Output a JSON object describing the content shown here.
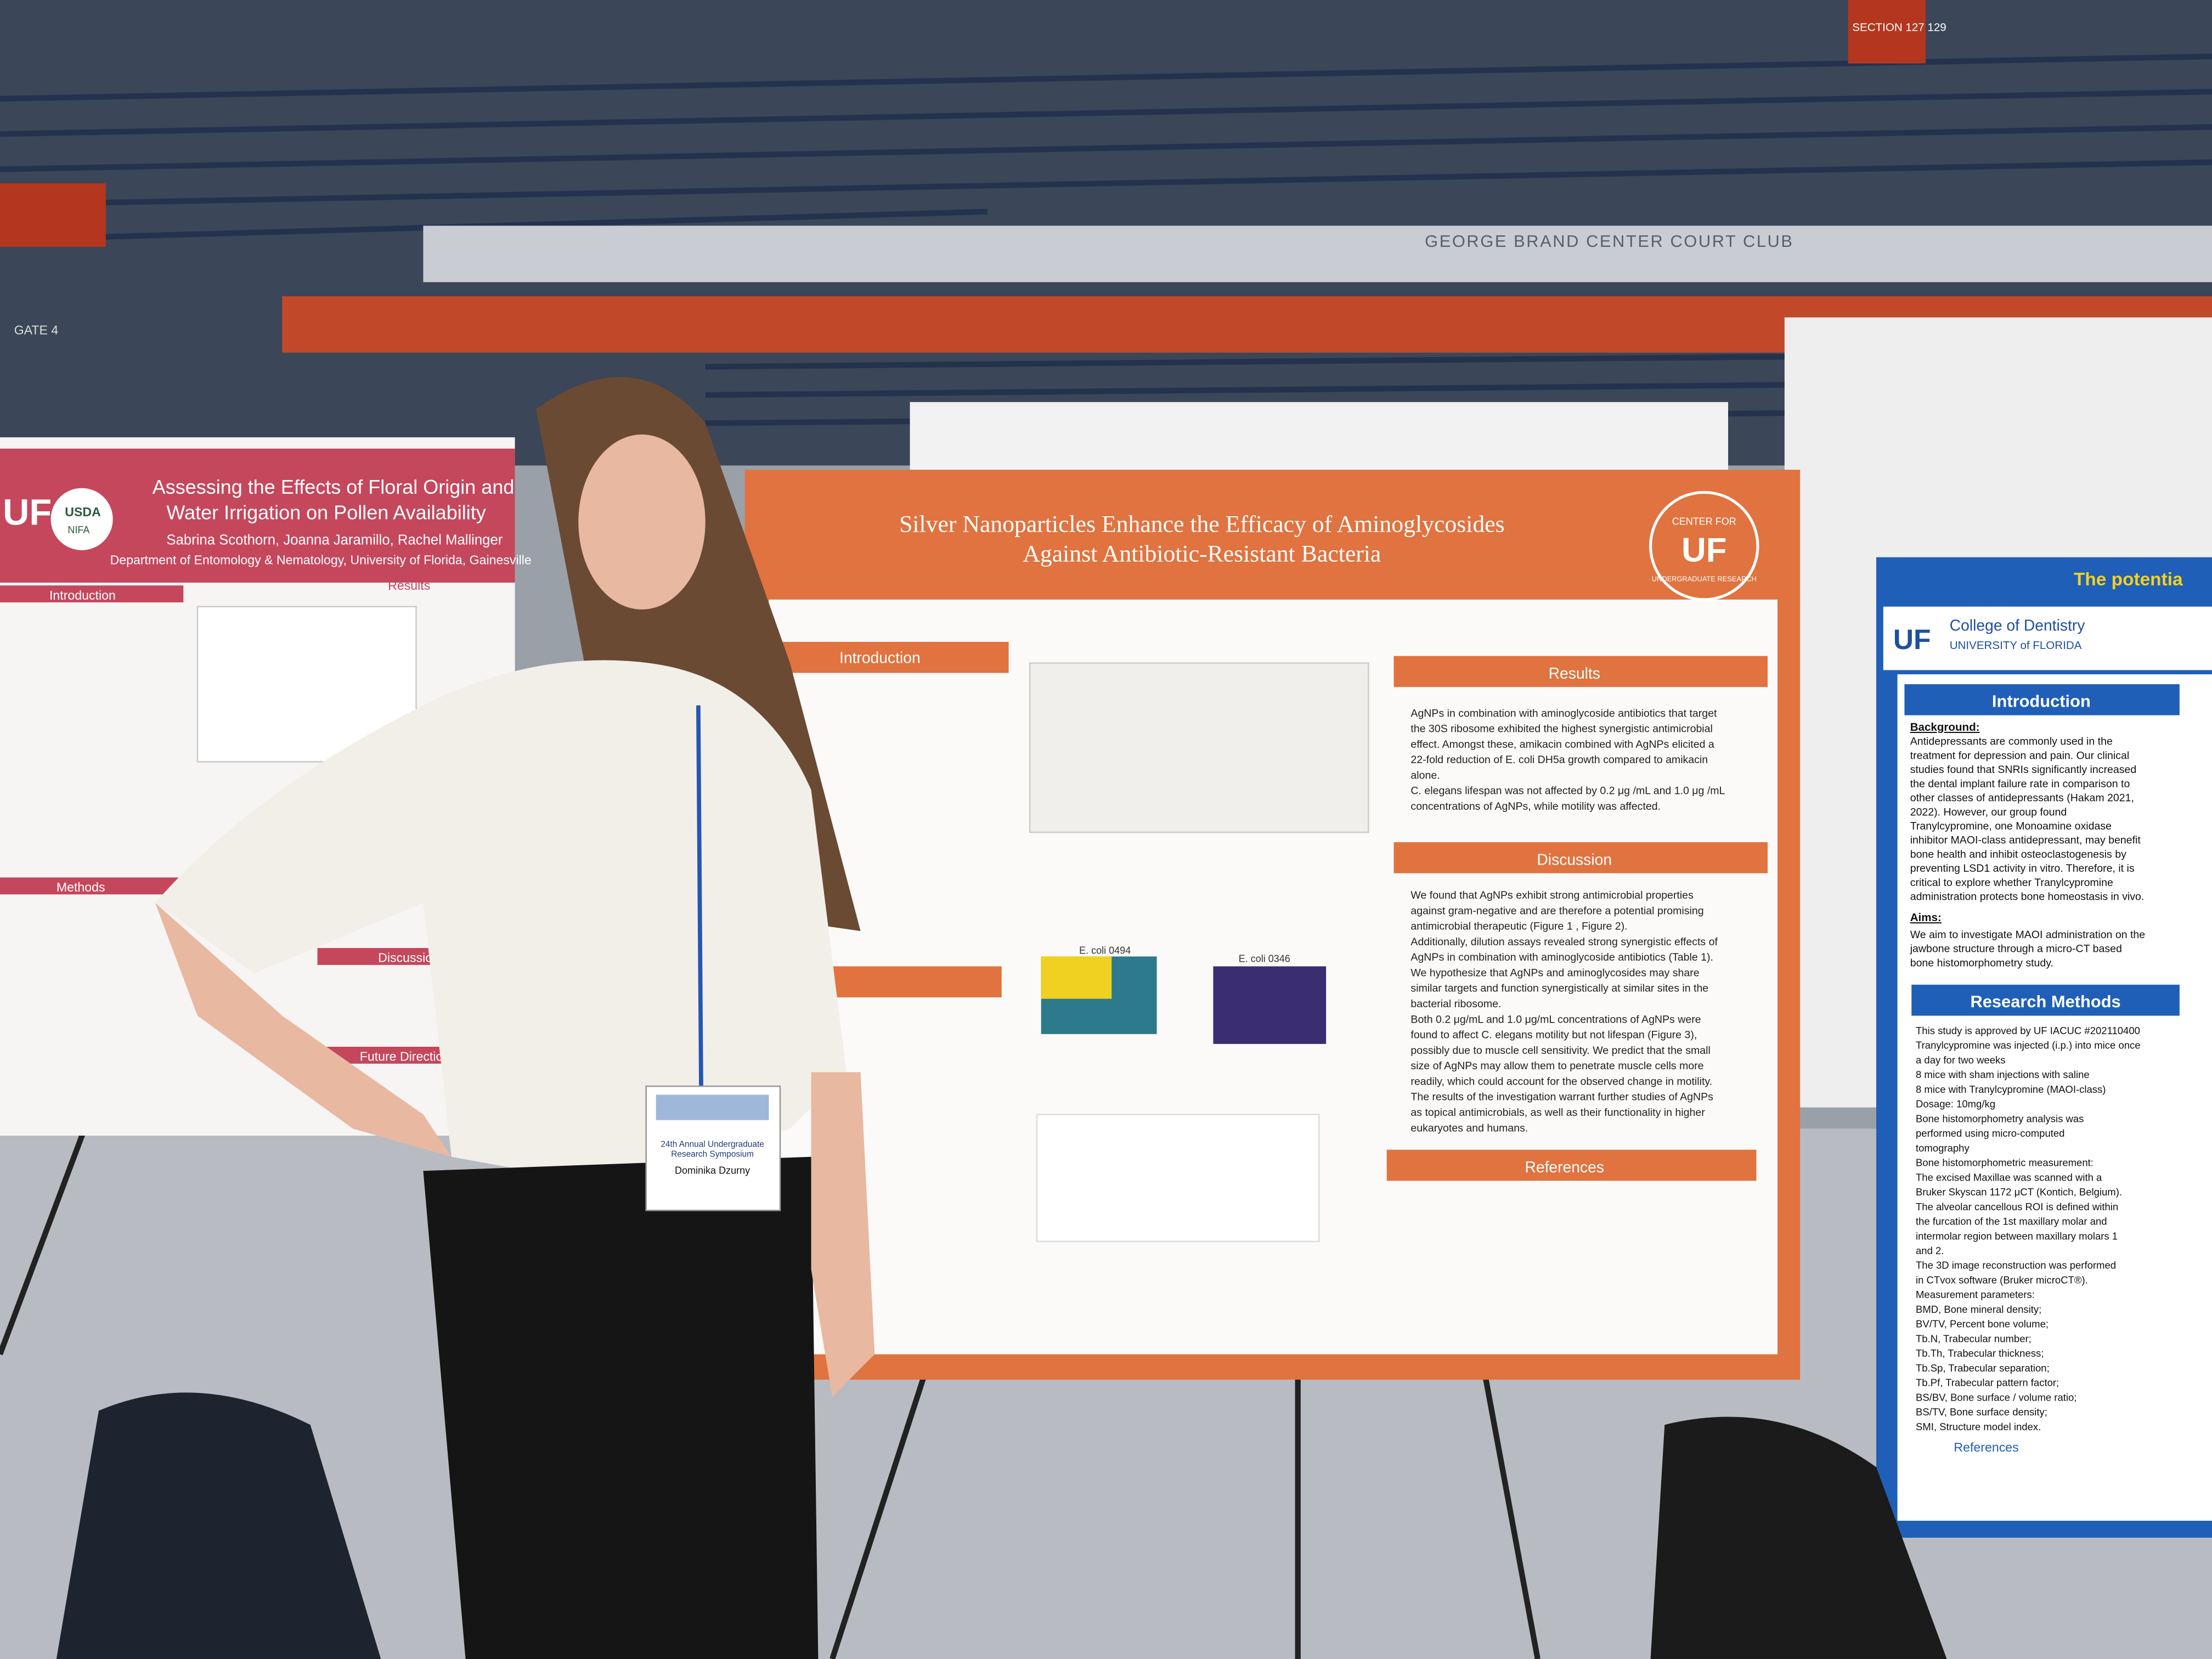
{
  "arena": {
    "club_sign": "GEORGE BRAND CENTER COURT CLUB",
    "gate_sign": "GATE 4",
    "section_sign": "SECTION 127 129"
  },
  "left_poster": {
    "logo": "UF",
    "usda": "USDA",
    "nifa": "NIFA",
    "title": [
      "Assessing the Effects of Floral Origin and",
      "Water Irrigation on Pollen Availability"
    ],
    "authors": "Sabrina Scothorn, Joanna Jaramillo, Rachel Mallinger",
    "affiliation": "Department of Entomology & Nematology, University of Florida, Gainesville",
    "headings": [
      "Introduction",
      "Results",
      "Methods",
      "Discussion",
      "Future Directions"
    ]
  },
  "center_poster": {
    "title": [
      "Silver Nanoparticles Enhance the Efficacy of Aminoglycosides",
      "Against Antibiotic-Resistant Bacteria"
    ],
    "logo_top": "CENTER FOR",
    "logo_mark": "UF",
    "logo_bottom": "UNDERGRADUATE RESEARCH",
    "intro_heading": "Introduction",
    "results_heading": "Results",
    "results_lines": [
      "AgNPs in combination with aminoglycoside antibiotics that target",
      "the 30S ribosome exhibited the highest synergistic antimicrobial",
      "effect. Amongst these, amikacin combined with AgNPs elicited a",
      "22-fold reduction of E. coli DH5a growth compared to amikacin",
      "alone.",
      "C. elegans lifespan was not affected by 0.2 μg /mL and 1.0 μg /mL",
      "concentrations of AgNPs, while motility was affected."
    ],
    "discussion_heading": "Discussion",
    "discussion_lines": [
      "We found that AgNPs exhibit strong antimicrobial properties",
      "against gram-negative and are therefore a potential promising",
      "antimicrobial therapeutic (Figure 1 , Figure 2).",
      "Additionally, dilution assays revealed strong synergistic effects of",
      "AgNPs in combination with aminoglycoside antibiotics (Table 1).",
      "We hypothesize that AgNPs and aminoglycosides may share",
      "similar targets and function synergistically at similar sites in the",
      "bacterial ribosome.",
      "Both 0.2 μg/mL and 1.0 μg/mL concentrations of AgNPs were",
      "found to affect C. elegans motility but not lifespan (Figure 3),",
      "possibly due to muscle cell sensitivity. We predict that the small",
      "size of AgNPs may allow them to penetrate muscle cells more",
      "readily, which could account for the observed change in motility.",
      "The results of the investigation warrant further studies of AgNPs",
      "as topical antimicrobials, as well as their functionality in higher",
      "eukaryotes and humans."
    ],
    "references_heading": "References",
    "heatmap_titles": [
      "E. coli 0494",
      "E. coli 0346"
    ]
  },
  "right_poster": {
    "title": "The potentia",
    "college": "College of Dentistry",
    "university": "UNIVERSITY of FLORIDA",
    "intro_heading": "Introduction",
    "background_label": "Background:",
    "background_lines": [
      "Antidepressants are commonly used in the",
      "treatment for depression and pain. Our clinical",
      "studies found that SNRIs significantly increased",
      "the dental implant failure rate in comparison to",
      "other classes of antidepressants (Hakam 2021,",
      "2022). However, our group found",
      "Tranylcypromine, one Monoamine oxidase",
      "inhibitor MAOI-class antidepressant, may benefit",
      "bone health and inhibit osteoclastogenesis by",
      "preventing LSD1 activity in vitro. Therefore, it is",
      "critical to explore whether Tranylcypromine",
      "administration protects bone homeostasis in vivo."
    ],
    "aims_label": "Aims:",
    "aims_lines": [
      "We aim to investigate MAOI administration on the",
      "jawbone structure through a micro-CT based",
      "bone histomorphometry study."
    ],
    "methods_heading": "Research Methods",
    "methods_lines": [
      "This study is approved by UF IACUC #202110400",
      "Tranylcypromine was injected (i.p.) into mice once",
      "a day for two weeks",
      "8 mice with sham injections with saline",
      "8 mice with Tranylcypromine (MAOI-class)",
      "Dosage: 10mg/kg",
      "Bone histomorphometry analysis was",
      "performed using micro-computed",
      "tomography",
      "Bone histomorphometric measurement:",
      "The excised Maxillae was scanned with a",
      "Bruker Skyscan 1172 μCT (Kontich, Belgium).",
      "The alveolar cancellous ROI is defined within",
      "the furcation of the 1st maxillary molar and",
      "intermolar region between maxillary molars 1",
      "and 2.",
      "The 3D image reconstruction was performed",
      "in CTvox software (Bruker microCT®).",
      "Measurement parameters:",
      "BMD, Bone mineral density;",
      "BV/TV, Percent bone volume;",
      "Tb.N, Trabecular number;",
      "Tb.Th, Trabecular thickness;",
      "Tb.Sp, Trabecular separation;",
      "Tb.Pf, Trabecular pattern factor;",
      "BS/BV, Bone surface / volume ratio;",
      "BS/TV, Bone surface density;",
      "SMI, Structure model index."
    ],
    "references_heading": "References"
  },
  "badge": {
    "event": [
      "24th Annual Undergraduate",
      "Research Symposium"
    ],
    "name": "Dominika Dzurny"
  }
}
